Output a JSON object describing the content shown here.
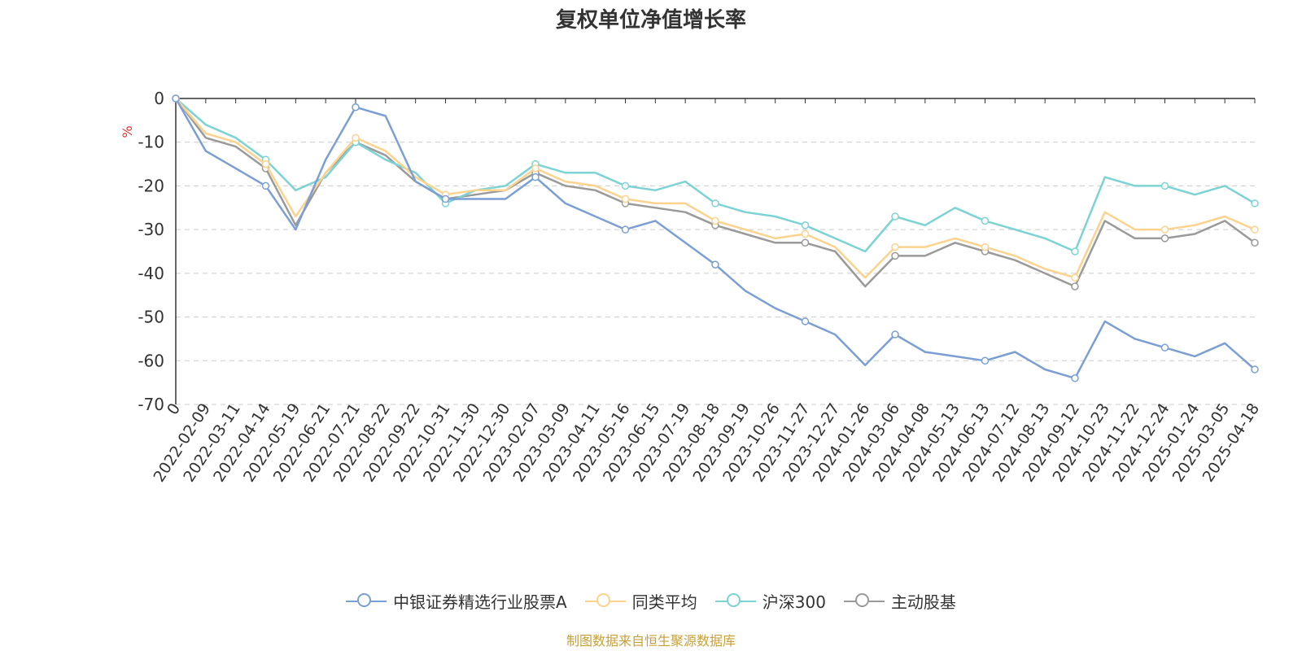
{
  "title": "复权单位净值增长率",
  "source": "制图数据来自恒生聚源数据库",
  "chart_data": {
    "type": "line",
    "title": "复权单位净值增长率",
    "ylabel": "%",
    "ylim": [
      -70,
      0
    ],
    "yticks": [
      0,
      -10,
      -20,
      -30,
      -40,
      -50,
      -60,
      -70
    ],
    "grid": true,
    "legend_position": "bottom",
    "x_ticks": [
      "0",
      "2022-02-09",
      "2022-03-11",
      "2022-04-14",
      "2022-05-19",
      "2022-06-21",
      "2022-07-21",
      "2022-08-22",
      "2022-09-22",
      "2022-10-31",
      "2022-11-30",
      "2022-12-30",
      "2023-02-07",
      "2023-03-09",
      "2023-04-11",
      "2023-05-16",
      "2023-06-15",
      "2023-07-19",
      "2023-08-18",
      "2023-09-19",
      "2023-10-26",
      "2023-11-27",
      "2023-12-27",
      "2024-01-26",
      "2024-03-06",
      "2024-04-08",
      "2024-05-13",
      "2024-06-13",
      "2024-07-12",
      "2024-08-13",
      "2024-09-12",
      "2024-10-23",
      "2024-11-22",
      "2024-12-24",
      "2025-01-24",
      "2025-03-05",
      "2025-04-18"
    ],
    "series": [
      {
        "name": "中银证券精选行业股票A",
        "color": "#7b9fd4",
        "values": [
          0,
          -12,
          -16,
          -20,
          -30,
          -14,
          -2,
          -4,
          -19,
          -23,
          -23,
          -23,
          -18,
          -24,
          -27,
          -30,
          -28,
          -33,
          -38,
          -44,
          -48,
          -51,
          -54,
          -61,
          -54,
          -58,
          -59,
          -60,
          -58,
          -62,
          -64,
          -51,
          -55,
          -57,
          -59,
          -56,
          -62
        ]
      },
      {
        "name": "同类平均",
        "color": "#fbd38f",
        "values": [
          0,
          -8,
          -10,
          -15,
          -27,
          -17,
          -9,
          -12,
          -18,
          -22,
          -21,
          -21,
          -16,
          -19,
          -20,
          -23,
          -24,
          -24,
          -28,
          -30,
          -32,
          -31,
          -34,
          -41,
          -34,
          -34,
          -32,
          -34,
          -36,
          -39,
          -41,
          -26,
          -30,
          -30,
          -29,
          -27,
          -30
        ]
      },
      {
        "name": "沪深300",
        "color": "#7dd3d3",
        "values": [
          0,
          -6,
          -9,
          -14,
          -21,
          -18,
          -10,
          -14,
          -17,
          -24,
          -21,
          -20,
          -15,
          -17,
          -17,
          -20,
          -21,
          -19,
          -24,
          -26,
          -27,
          -29,
          -32,
          -35,
          -27,
          -29,
          -25,
          -28,
          -30,
          -32,
          -35,
          -18,
          -20,
          -20,
          -22,
          -20,
          -24
        ]
      },
      {
        "name": "主动股基",
        "color": "#9a9a9a",
        "values": [
          0,
          -9,
          -11,
          -16,
          -29,
          -17,
          -10,
          -13,
          -19,
          -23,
          -22,
          -21,
          -17,
          -20,
          -21,
          -24,
          -25,
          -26,
          -29,
          -31,
          -33,
          -33,
          -35,
          -43,
          -36,
          -36,
          -33,
          -35,
          -37,
          -40,
          -43,
          -28,
          -32,
          -32,
          -31,
          -28,
          -33
        ]
      }
    ]
  }
}
